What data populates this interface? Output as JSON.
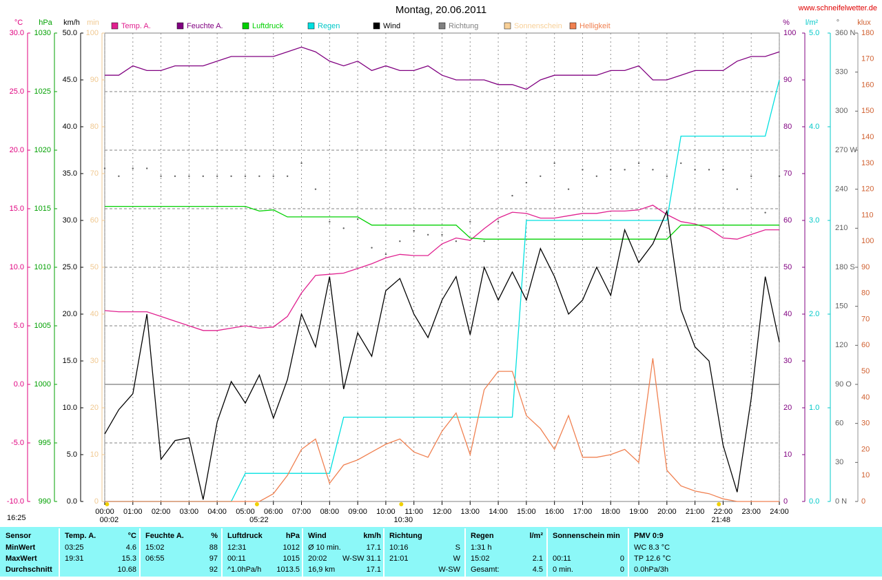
{
  "chart_data": {
    "type": "line",
    "title": "Montag, 20.06.2011",
    "website": "www.schneifelwetter.de",
    "side_note": "16:25",
    "x": [
      0,
      0.5,
      1,
      1.5,
      2,
      2.5,
      3,
      3.5,
      4,
      4.5,
      5,
      5.5,
      6,
      6.5,
      7,
      7.5,
      8,
      8.5,
      9,
      9.5,
      10,
      10.5,
      11,
      11.5,
      12,
      12.5,
      13,
      13.5,
      14,
      14.5,
      15,
      15.5,
      16,
      16.5,
      17,
      17.5,
      18,
      18.5,
      19,
      19.5,
      20,
      20.5,
      21,
      21.5,
      22,
      22.5,
      23,
      23.5,
      24
    ],
    "xlim": [
      0,
      24
    ],
    "xticks": [
      {
        "value": 0,
        "label": "00:00"
      },
      {
        "value": 1,
        "label": "01:00"
      },
      {
        "value": 2,
        "label": "02:00"
      },
      {
        "value": 3,
        "label": "03:00"
      },
      {
        "value": 4,
        "label": "04:00"
      },
      {
        "value": 5,
        "label": "05:00"
      },
      {
        "value": 6,
        "label": "06:00"
      },
      {
        "value": 7,
        "label": "07:00"
      },
      {
        "value": 8,
        "label": "08:00"
      },
      {
        "value": 9,
        "label": "09:00"
      },
      {
        "value": 10,
        "label": "10:00"
      },
      {
        "value": 11,
        "label": "11:00"
      },
      {
        "value": 12,
        "label": "12:00"
      },
      {
        "value": 13,
        "label": "13:00"
      },
      {
        "value": 14,
        "label": "14:00"
      },
      {
        "value": 15,
        "label": "15:00"
      },
      {
        "value": 16,
        "label": "16:00"
      },
      {
        "value": 17,
        "label": "17:00"
      },
      {
        "value": 18,
        "label": "18:00"
      },
      {
        "value": 19,
        "label": "19:00"
      },
      {
        "value": 20,
        "label": "20:00"
      },
      {
        "value": 21,
        "label": "21:00"
      },
      {
        "value": 22,
        "label": "22:00"
      },
      {
        "value": 23,
        "label": "23:00"
      },
      {
        "value": 24,
        "label": "24:00"
      }
    ],
    "grid": true,
    "axes": [
      {
        "label": "°C",
        "color": "#e0007f",
        "lim": [
          -10,
          30
        ],
        "ticks": [
          {
            "value": -10,
            "label": "-10.0"
          },
          {
            "value": -5,
            "label": "-5.0"
          },
          {
            "value": 0,
            "label": "0.0"
          },
          {
            "value": 5,
            "label": "5.0"
          },
          {
            "value": 10,
            "label": "10.0"
          },
          {
            "value": 15,
            "label": "15.0"
          },
          {
            "value": 20,
            "label": "20.0"
          },
          {
            "value": 25,
            "label": "25.0"
          },
          {
            "value": 30,
            "label": "30.0"
          }
        ]
      },
      {
        "label": "hPa",
        "color": "#00a000",
        "lim": [
          990,
          1030
        ],
        "ticks": [
          990,
          995,
          1000,
          1005,
          1010,
          1015,
          1020,
          1025,
          1030
        ]
      },
      {
        "label": "km/h",
        "color": "#000000",
        "lim": [
          0,
          50
        ],
        "ticks": [
          {
            "value": 0,
            "label": "0.0"
          },
          {
            "value": 5,
            "label": "5.0"
          },
          {
            "value": 10,
            "label": "10.0"
          },
          {
            "value": 15,
            "label": "15.0"
          },
          {
            "value": 20,
            "label": "20.0"
          },
          {
            "value": 25,
            "label": "25.0"
          },
          {
            "value": 30,
            "label": "30.0"
          },
          {
            "value": 35,
            "label": "35.0"
          },
          {
            "value": 40,
            "label": "40.0"
          },
          {
            "value": 45,
            "label": "45.0"
          },
          {
            "value": 50,
            "label": "50.0"
          }
        ]
      },
      {
        "label": "min",
        "color": "#f0c890",
        "lim": [
          0,
          100
        ],
        "ticks": [
          0,
          10,
          20,
          30,
          40,
          50,
          60,
          70,
          80,
          90,
          100
        ]
      },
      {
        "label": "%",
        "color": "#800080",
        "lim": [
          0,
          100
        ],
        "ticks": [
          0,
          10,
          20,
          30,
          40,
          50,
          60,
          70,
          80,
          90,
          100
        ]
      },
      {
        "label": "l/m²",
        "color": "#00c8c8",
        "lim": [
          0,
          5
        ],
        "ticks": [
          {
            "value": 0,
            "label": "0.0"
          },
          {
            "value": 1,
            "label": "1.0"
          },
          {
            "value": 2,
            "label": "2.0"
          },
          {
            "value": 3,
            "label": "3.0"
          },
          {
            "value": 4,
            "label": "4.0"
          },
          {
            "value": 5,
            "label": "5.0"
          }
        ]
      },
      {
        "label": "°",
        "color": "#606060",
        "lim": [
          0,
          360
        ],
        "ticks": [
          {
            "value": 0,
            "label": "0   N"
          },
          30,
          60,
          {
            "value": 90,
            "label": "90   O"
          },
          120,
          150,
          {
            "value": 180,
            "label": "180 S"
          },
          210,
          240,
          {
            "value": 270,
            "label": "270 W"
          },
          300,
          330,
          {
            "value": 360,
            "label": "360 N"
          }
        ]
      },
      {
        "label": "klux",
        "color": "#d06030",
        "lim": [
          0,
          180
        ],
        "ticks": [
          0,
          10,
          20,
          30,
          40,
          50,
          60,
          70,
          80,
          90,
          100,
          110,
          120,
          130,
          140,
          150,
          160,
          170,
          180
        ]
      }
    ],
    "series": [
      {
        "name": "Temp. A.",
        "color": "#e0208f",
        "axis": 0,
        "mark": "line",
        "values": [
          6.3,
          6.2,
          6.2,
          6.2,
          5.8,
          5.4,
          5.0,
          4.6,
          4.6,
          4.8,
          5.0,
          4.8,
          4.9,
          5.8,
          7.8,
          9.3,
          9.4,
          9.5,
          9.9,
          10.3,
          10.8,
          11.1,
          11.0,
          11.0,
          12.0,
          12.5,
          12.3,
          13.3,
          14.2,
          14.7,
          14.6,
          14.2,
          14.2,
          14.4,
          14.6,
          14.6,
          14.8,
          14.8,
          14.9,
          15.3,
          14.5,
          13.9,
          13.7,
          13.3,
          12.5,
          12.4,
          12.8,
          13.2,
          13.2
        ]
      },
      {
        "name": "Feuchte A.",
        "color": "#800080",
        "axis": 4,
        "mark": "line",
        "values": [
          91,
          91,
          93,
          92,
          92,
          93,
          93,
          93,
          94,
          95,
          95,
          95,
          95,
          96,
          97,
          96,
          94,
          93,
          94,
          92,
          93,
          92,
          92,
          93,
          91,
          90,
          90,
          90,
          89,
          89,
          88,
          90,
          91,
          91,
          91,
          91,
          92,
          92,
          93,
          90,
          90,
          91,
          92,
          92,
          92,
          94,
          95,
          95,
          96
        ]
      },
      {
        "name": "Luftdruck",
        "color": "#00d000",
        "axis": 1,
        "mark": "line",
        "values": [
          1015.2,
          1015.2,
          1015.2,
          1015.2,
          1015.2,
          1015.2,
          1015.2,
          1015.2,
          1015.2,
          1015.2,
          1015.2,
          1014.8,
          1014.9,
          1014.3,
          1014.3,
          1014.3,
          1014.3,
          1014.3,
          1014.3,
          1013.6,
          1013.6,
          1013.6,
          1013.6,
          1013.6,
          1013.6,
          1013.6,
          1012.5,
          1012.4,
          1012.4,
          1012.4,
          1012.4,
          1012.4,
          1012.4,
          1012.4,
          1012.4,
          1012.4,
          1012.4,
          1012.4,
          1012.4,
          1012.4,
          1012.4,
          1013.6,
          1013.6,
          1013.6,
          1013.6,
          1013.6,
          1013.6,
          1013.6,
          1013.6
        ]
      },
      {
        "name": "Regen",
        "color": "#00e0e0",
        "axis": 5,
        "mark": "line",
        "values": [
          0,
          0,
          0,
          0,
          0,
          0,
          0,
          0,
          0,
          0,
          0.3,
          0.3,
          0.3,
          0.3,
          0.3,
          0.3,
          0.3,
          0.9,
          0.9,
          0.9,
          0.9,
          0.9,
          0.9,
          0.9,
          0.9,
          0.9,
          0.9,
          0.9,
          0.9,
          0.9,
          3.0,
          3.0,
          3.0,
          3.0,
          3.0,
          3.0,
          3.0,
          3.0,
          3.0,
          3.0,
          3.0,
          3.9,
          3.9,
          3.9,
          3.9,
          3.9,
          3.9,
          3.9,
          4.5
        ]
      },
      {
        "name": "Wind",
        "color": "#000000",
        "axis": 2,
        "mark": "line",
        "values": [
          7.2,
          9.8,
          11.5,
          20.0,
          4.5,
          6.5,
          6.8,
          0.2,
          8.5,
          12.8,
          10.5,
          13.5,
          8.9,
          13.0,
          20.0,
          16.5,
          24.0,
          12.0,
          18.0,
          15.5,
          22.5,
          23.8,
          20.0,
          17.5,
          21.5,
          24.0,
          17.8,
          25.0,
          21.5,
          24.5,
          21.5,
          27.0,
          24.0,
          20.0,
          21.5,
          25.0,
          22.0,
          29.0,
          25.5,
          27.5,
          31.0,
          20.5,
          16.5,
          15.0,
          6.0,
          1.0,
          11.0,
          24.0,
          17.0
        ]
      },
      {
        "name": "Richtung",
        "color": "#808080",
        "axis": 6,
        "mark": "dots",
        "values": [
          256,
          250,
          256,
          256,
          250,
          250,
          250,
          250,
          250,
          250,
          250,
          250,
          250,
          250,
          260,
          240,
          215,
          210,
          217,
          195,
          190,
          200,
          208,
          205,
          205,
          200,
          215,
          200,
          215,
          235,
          245,
          250,
          260,
          240,
          255,
          250,
          255,
          255,
          260,
          255,
          250,
          260,
          255,
          255,
          255,
          240,
          250,
          222,
          250
        ]
      },
      {
        "name": "Sonnenschein",
        "color": "#f8d098",
        "axis": 3,
        "mark": "line"
      },
      {
        "name": "Helligkeit",
        "color": "#f08050",
        "axis": 7,
        "mark": "line",
        "values": [
          0,
          0,
          0,
          0,
          0,
          0,
          0,
          0,
          0,
          0,
          0,
          0,
          3,
          10,
          20,
          24,
          7,
          14,
          16,
          19,
          22,
          24,
          19,
          17,
          27,
          34,
          18,
          43,
          50,
          50,
          33,
          28,
          20,
          33,
          17,
          17,
          18,
          20,
          15,
          55,
          12,
          6,
          4,
          3,
          1,
          0,
          0,
          0,
          0
        ]
      }
    ],
    "annotations": [
      {
        "text": "00:02",
        "x": 0.0333
      },
      {
        "text": "05:22",
        "x": 5.3667
      },
      {
        "text": "10:30",
        "x": 10.5
      },
      {
        "text": "21:48",
        "x": 21.8
      }
    ]
  },
  "table": {
    "first": {
      "title": "Sensor",
      "rows": [
        "MinWert",
        "MaxWert",
        "Durchschnitt"
      ]
    },
    "groups": [
      {
        "title": "Temp. A.",
        "unit": "°C",
        "rows": [
          [
            "03:25",
            "4.6"
          ],
          [
            "19:31",
            "15.3"
          ],
          [
            null,
            "10.68"
          ]
        ]
      },
      {
        "title": "Feuchte A.",
        "unit": "%",
        "rows": [
          [
            "15:02",
            "88"
          ],
          [
            "06:55",
            "97"
          ],
          [
            null,
            "92"
          ]
        ]
      },
      {
        "title": "Luftdruck",
        "unit": "hPa",
        "rows": [
          [
            "12:31",
            "1012"
          ],
          [
            "00:11",
            "1015"
          ],
          [
            "^1.0hPa/h",
            "1013.5"
          ]
        ]
      },
      {
        "title": "Wind",
        "unit": "km/h",
        "rows": [
          [
            "Ø 10 min.",
            "17.1"
          ],
          [
            "20:02",
            "W-SW 31.1"
          ],
          [
            "16,9 km",
            "17.1"
          ]
        ]
      },
      {
        "title": "Richtung",
        "unit": null,
        "rows": [
          [
            "10:16",
            "S"
          ],
          [
            "21:01",
            "W"
          ],
          [
            null,
            "W-SW"
          ]
        ]
      },
      {
        "title": "Regen",
        "unit": "l/m²",
        "rows": [
          [
            "1:31 h",
            null
          ],
          [
            "15:02",
            "2.1"
          ],
          [
            "Gesamt:",
            "4.5"
          ]
        ]
      },
      {
        "title": "Sonnenschein min",
        "unit": null,
        "rows": [
          [
            null,
            null
          ],
          [
            "00:11",
            "0"
          ],
          [
            "0 min.",
            "0"
          ]
        ]
      },
      {
        "title": "PMV 0:9",
        "unit": null,
        "rows": [
          [
            "WC 8.3 °C",
            null
          ],
          [
            "TP 12.6 °C",
            null
          ],
          [
            "0.0hPa/3h",
            null
          ]
        ]
      }
    ]
  }
}
